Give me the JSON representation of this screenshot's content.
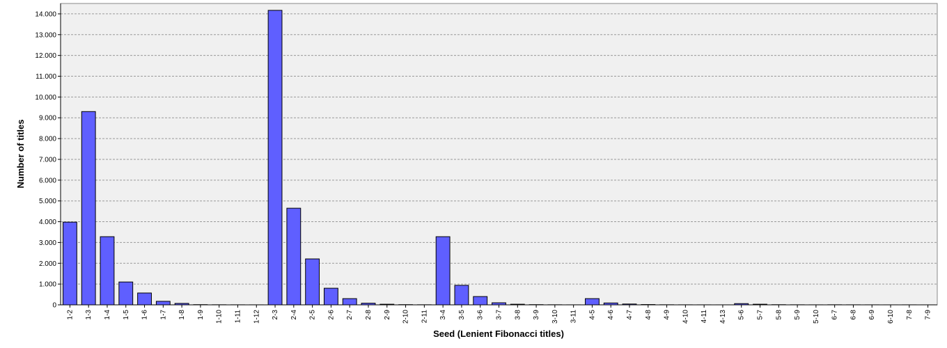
{
  "chart_data": {
    "type": "bar",
    "x_label": "Seed (Lenient Fibonacci titles)",
    "y_label": "Number of titles",
    "categories": [
      "1-2",
      "1-3",
      "1-4",
      "1-5",
      "1-6",
      "1-7",
      "1-8",
      "1-9",
      "1-10",
      "1-11",
      "1-12",
      "2-3",
      "2-4",
      "2-5",
      "2-6",
      "2-7",
      "2-8",
      "2-9",
      "2-10",
      "2-11",
      "3-4",
      "3-5",
      "3-6",
      "3-7",
      "3-8",
      "3-9",
      "3-10",
      "3-11",
      "4-5",
      "4-6",
      "4-7",
      "4-8",
      "4-9",
      "4-10",
      "4-11",
      "4-13",
      "5-6",
      "5-7",
      "5-8",
      "5-9",
      "5-10",
      "6-7",
      "6-8",
      "6-9",
      "6-10",
      "7-8",
      "7-9"
    ],
    "values": [
      3980,
      9300,
      3280,
      1100,
      570,
      170,
      70,
      10,
      5,
      3,
      2,
      14170,
      4650,
      2210,
      800,
      300,
      80,
      30,
      10,
      5,
      3280,
      940,
      400,
      100,
      30,
      10,
      5,
      2,
      300,
      90,
      40,
      15,
      5,
      3,
      2,
      1,
      60,
      30,
      8,
      4,
      2,
      5,
      3,
      2,
      1,
      2,
      1
    ],
    "color": "#5f5fff",
    "ylim": [
      0,
      14500
    ],
    "yticks": [
      0,
      {
        "value": 1000,
        "label": "1.000"
      },
      {
        "value": 2000,
        "label": "2.000"
      },
      {
        "value": 3000,
        "label": "3.000"
      },
      {
        "value": 4000,
        "label": "4.000"
      },
      {
        "value": 5000,
        "label": "5.000"
      },
      {
        "value": 6000,
        "label": "6.000"
      },
      {
        "value": 7000,
        "label": "7.000"
      },
      {
        "value": 8000,
        "label": "8.000"
      },
      {
        "value": 9000,
        "label": "9.000"
      },
      {
        "value": 10000,
        "label": "10.000"
      },
      {
        "value": 11000,
        "label": "11.000"
      },
      {
        "value": 12000,
        "label": "12.000"
      },
      {
        "value": 13000,
        "label": "13.000"
      },
      {
        "value": 14000,
        "label": "14.000"
      }
    ],
    "grid": true
  }
}
